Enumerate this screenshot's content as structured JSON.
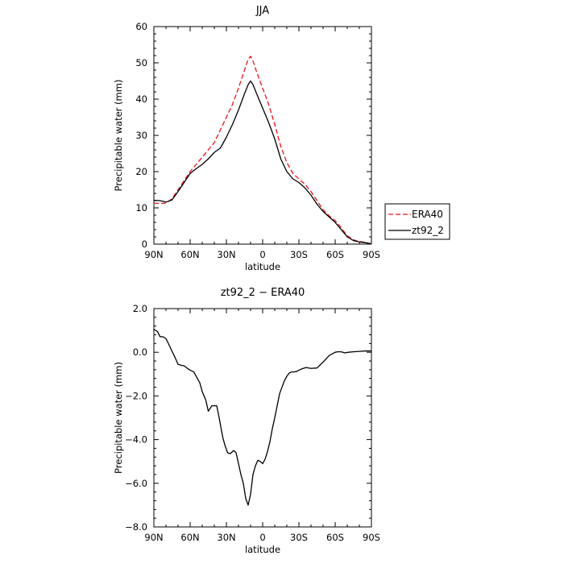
{
  "chart_data": [
    {
      "type": "line",
      "title": "JJA",
      "xlabel": "latitude",
      "ylabel": "Precipitable water (mm)",
      "xlim": [
        90,
        -90
      ],
      "ylim": [
        0,
        60
      ],
      "xticks": [
        90,
        60,
        30,
        0,
        -30,
        -60,
        -90
      ],
      "xtick_labels": [
        "90N",
        "60N",
        "30N",
        "0",
        "30S",
        "60S",
        "90S"
      ],
      "yticks": [
        0,
        10,
        20,
        30,
        40,
        50,
        60
      ],
      "ytick_labels": [
        "0",
        "10",
        "20",
        "30",
        "40",
        "50",
        "60"
      ],
      "grid": false,
      "legend": {
        "placement": "right",
        "entries": [
          "ERA40",
          "zt92_2"
        ]
      },
      "series": [
        {
          "name": "ERA40",
          "color": "#e8141a",
          "dash": "dashed",
          "x": [
            90,
            85,
            80,
            75,
            70,
            65,
            60,
            55,
            50,
            45,
            40,
            35,
            30,
            25,
            20,
            15,
            12,
            10,
            8,
            5,
            0,
            -5,
            -10,
            -15,
            -20,
            -25,
            -30,
            -35,
            -40,
            -45,
            -50,
            -55,
            -60,
            -65,
            -70,
            -75,
            -80,
            -85,
            -90
          ],
          "y": [
            11.3,
            11.2,
            11.3,
            12.5,
            15.0,
            17.5,
            20.0,
            22.0,
            24.0,
            26.0,
            28.0,
            31.5,
            35.0,
            38.5,
            43.0,
            48.0,
            51.0,
            51.8,
            50.5,
            47.5,
            43.0,
            38.5,
            33.0,
            27.0,
            22.5,
            19.5,
            18.0,
            16.5,
            14.5,
            12.0,
            9.5,
            7.8,
            6.5,
            4.5,
            2.3,
            1.2,
            0.7,
            0.5,
            0.0
          ]
        },
        {
          "name": "zt92_2",
          "color": "#000000",
          "dash": "solid",
          "x": [
            90,
            85,
            80,
            75,
            70,
            65,
            60,
            55,
            50,
            45,
            40,
            35,
            30,
            25,
            20,
            15,
            12,
            10,
            8,
            5,
            0,
            -5,
            -10,
            -15,
            -20,
            -25,
            -30,
            -35,
            -40,
            -45,
            -50,
            -55,
            -60,
            -65,
            -70,
            -75,
            -80,
            -85,
            -90
          ],
          "y": [
            12.1,
            12.0,
            11.6,
            12.2,
            14.5,
            17.0,
            19.5,
            20.8,
            22.0,
            23.5,
            25.3,
            26.5,
            29.5,
            33.0,
            37.0,
            41.5,
            44.0,
            45.0,
            44.0,
            41.5,
            37.5,
            33.5,
            29.0,
            23.5,
            20.0,
            18.0,
            17.0,
            15.5,
            13.5,
            11.0,
            9.0,
            7.5,
            6.0,
            4.0,
            2.0,
            1.0,
            0.6,
            0.4,
            0.1
          ]
        }
      ]
    },
    {
      "type": "line",
      "title": "zt92_2 − ERA40",
      "xlabel": "latitude",
      "ylabel": "Precipitable water (mm)",
      "xlim": [
        90,
        -90
      ],
      "ylim": [
        -8,
        2
      ],
      "xticks": [
        90,
        60,
        30,
        0,
        -30,
        -60,
        -90
      ],
      "xtick_labels": [
        "90N",
        "60N",
        "30N",
        "0",
        "30S",
        "60S",
        "90S"
      ],
      "yticks": [
        2,
        0,
        -2,
        -4,
        -6,
        -8
      ],
      "ytick_labels": [
        "2.0",
        "0.0",
        "−2.0",
        "−4.0",
        "−6.0",
        "−8.0"
      ],
      "grid": false,
      "series": [
        {
          "color": "#000000",
          "dash": "solid",
          "x": [
            90,
            87,
            85,
            82,
            80,
            78,
            75,
            72,
            70,
            67,
            65,
            62,
            60,
            57,
            55,
            52,
            50,
            47,
            45,
            42,
            40,
            38,
            36,
            33,
            31,
            29,
            27,
            24,
            22,
            20,
            18,
            16,
            14,
            12,
            10,
            8,
            6,
            4,
            2,
            0,
            -2,
            -4,
            -6,
            -8,
            -10,
            -12,
            -14,
            -16,
            -18,
            -20,
            -22,
            -24,
            -26,
            -28,
            -30,
            -33,
            -36,
            -40,
            -45,
            -50,
            -55,
            -60,
            -62,
            -65,
            -68,
            -71,
            -75,
            -80,
            -85,
            -90
          ],
          "y": [
            1.05,
            0.95,
            0.72,
            0.7,
            0.62,
            0.4,
            0.05,
            -0.3,
            -0.55,
            -0.6,
            -0.62,
            -0.75,
            -0.82,
            -0.9,
            -1.1,
            -1.4,
            -1.8,
            -2.2,
            -2.7,
            -2.45,
            -2.45,
            -2.45,
            -3.0,
            -3.9,
            -4.3,
            -4.6,
            -4.65,
            -4.5,
            -4.6,
            -5.1,
            -5.6,
            -6.0,
            -6.7,
            -7.0,
            -6.5,
            -5.6,
            -5.2,
            -4.95,
            -5.0,
            -5.1,
            -4.9,
            -4.55,
            -4.1,
            -3.5,
            -3.0,
            -2.45,
            -1.9,
            -1.6,
            -1.3,
            -1.1,
            -0.95,
            -0.9,
            -0.9,
            -0.88,
            -0.82,
            -0.75,
            -0.7,
            -0.74,
            -0.72,
            -0.45,
            -0.15,
            0.0,
            0.02,
            0.02,
            -0.03,
            0.0,
            0.02,
            0.04,
            0.06,
            0.06
          ]
        }
      ]
    }
  ]
}
